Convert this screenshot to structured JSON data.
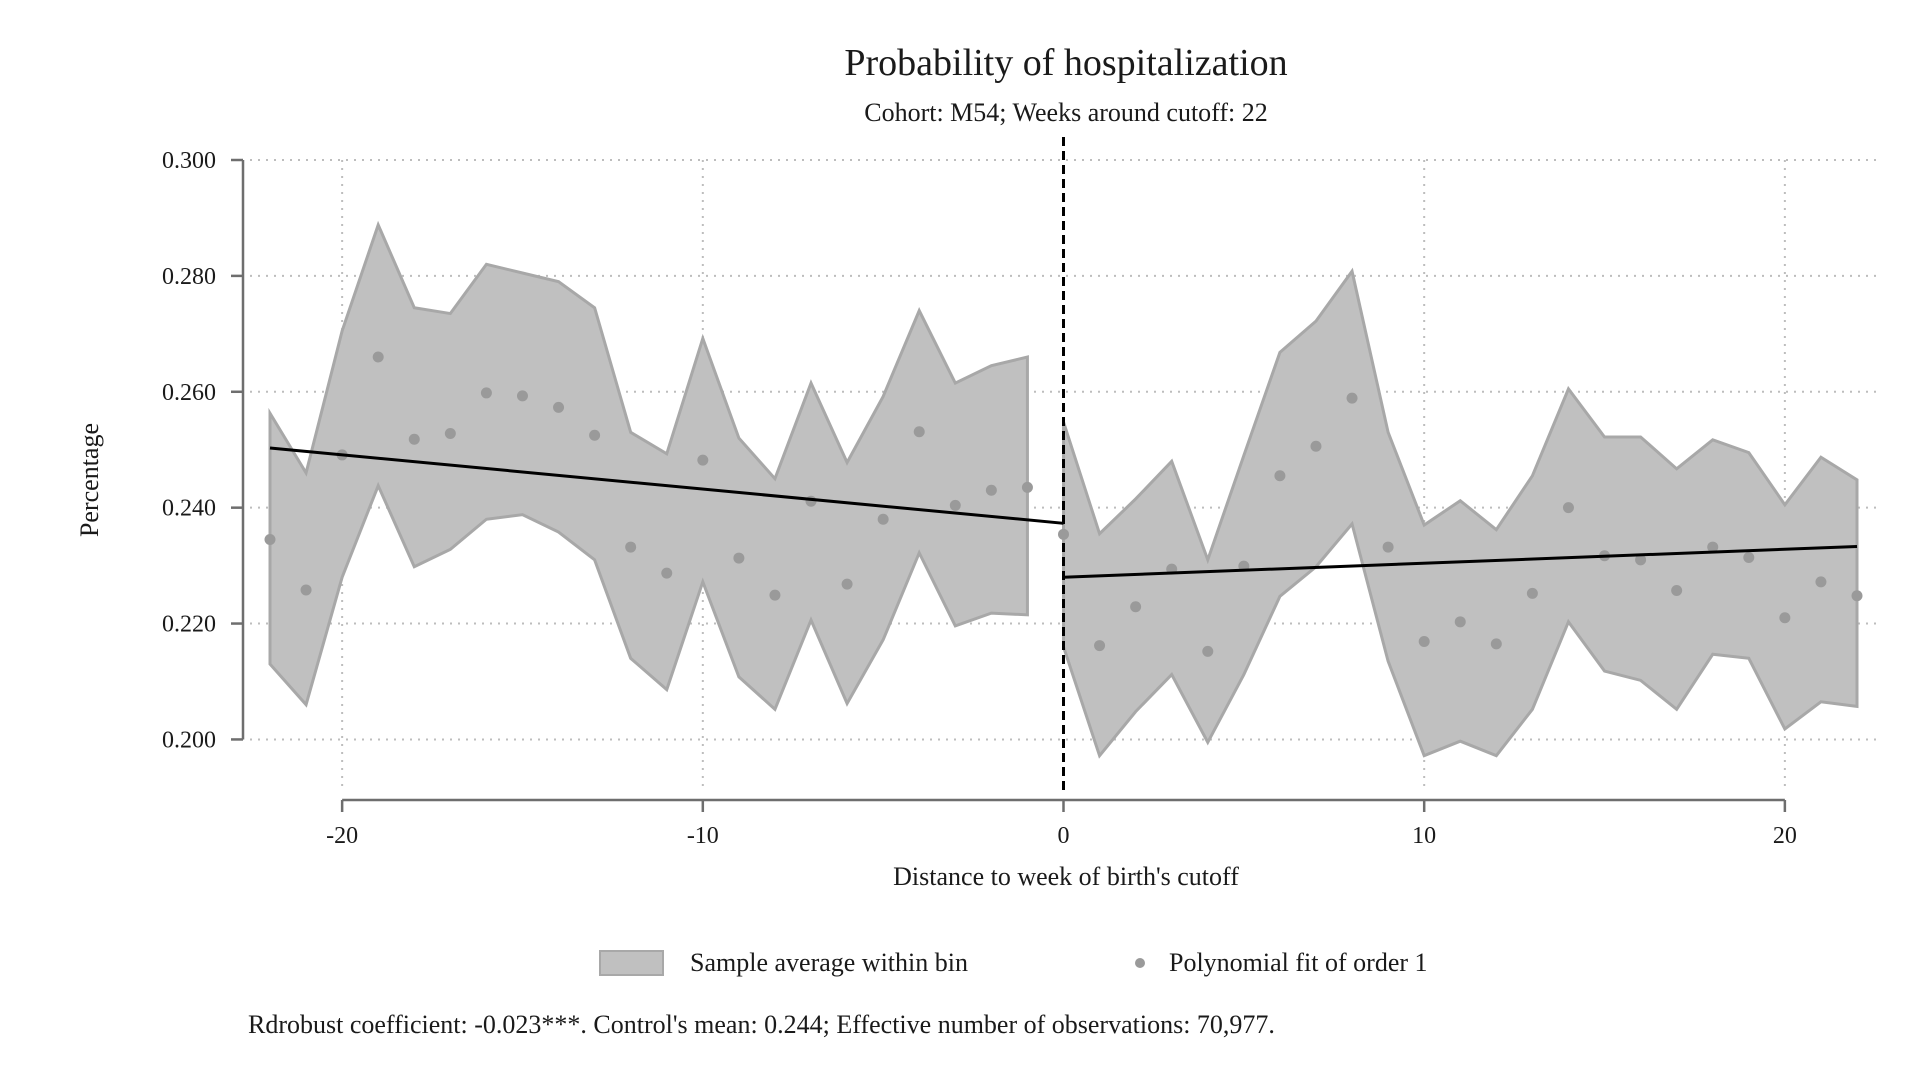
{
  "chart_data": {
    "type": "scatter",
    "title": "Probability of hospitalization",
    "subtitle": "Cohort: M54; Weeks around cutoff: 22",
    "xlabel": "Distance to week of birth's cutoff",
    "ylabel": "Percentage",
    "xlim": [
      -22,
      22
    ],
    "ylim": [
      0.193,
      0.3
    ],
    "x_ticks": [
      -20,
      -10,
      0,
      10,
      20
    ],
    "x_tick_labels": [
      "-20",
      "-10",
      "0",
      "10",
      "20"
    ],
    "y_ticks": [
      0.2,
      0.22,
      0.24,
      0.26,
      0.28,
      0.3
    ],
    "y_tick_labels": [
      "0.200",
      "0.220",
      "0.240",
      "0.260",
      "0.280",
      "0.300"
    ],
    "grid": true,
    "cutoff": 0,
    "legend_position": "bottom",
    "legend": [
      "Sample average within bin",
      "Polynomial fit of order 1"
    ],
    "series": [
      {
        "x": [
          -22,
          -21,
          -20,
          -19,
          -18,
          -17,
          -16,
          -15,
          -14,
          -13,
          -12,
          -11,
          -10,
          -9,
          -8,
          -7,
          -6,
          -5,
          -4,
          -3,
          -2,
          -1
        ],
        "values": [
          0.2345,
          0.2258,
          0.2491,
          0.266,
          0.2518,
          0.2528,
          0.2598,
          0.2593,
          0.2573,
          0.2525,
          0.2332,
          0.2287,
          0.2482,
          0.2313,
          0.2249,
          0.2411,
          0.2268,
          0.238,
          0.2531,
          0.2404,
          0.243,
          0.2435
        ],
        "lower": [
          0.213,
          0.206,
          0.228,
          0.2438,
          0.2298,
          0.2328,
          0.238,
          0.2388,
          0.2358,
          0.231,
          0.214,
          0.2086,
          0.2272,
          0.2108,
          0.2052,
          0.2206,
          0.2062,
          0.2172,
          0.2322,
          0.2196,
          0.2218,
          0.2215
        ],
        "upper": [
          0.2563,
          0.246,
          0.2705,
          0.2888,
          0.2745,
          0.2735,
          0.282,
          0.2805,
          0.279,
          0.2745,
          0.253,
          0.2493,
          0.2692,
          0.252,
          0.245,
          0.2615,
          0.2478,
          0.2592,
          0.274,
          0.2615,
          0.2645,
          0.266
        ]
      },
      {
        "x": [
          0,
          1,
          2,
          3,
          4,
          5,
          6,
          7,
          8,
          9,
          10,
          11,
          12,
          13,
          14,
          15,
          16,
          17,
          18,
          19,
          20,
          21,
          22
        ],
        "values": [
          0.2354,
          0.2162,
          0.2229,
          0.2294,
          0.2152,
          0.2299,
          0.2455,
          0.2506,
          0.2589,
          0.2332,
          0.2169,
          0.2203,
          0.2165,
          0.2252,
          0.24,
          0.2317,
          0.231,
          0.2257,
          0.2332,
          0.2314,
          0.221,
          0.2272,
          0.2248
        ],
        "lower": [
          0.216,
          0.1972,
          0.2048,
          0.2112,
          0.1995,
          0.2112,
          0.2247,
          0.2298,
          0.2372,
          0.2135,
          0.1972,
          0.1997,
          0.1972,
          0.2052,
          0.2203,
          0.2118,
          0.2102,
          0.2052,
          0.2147,
          0.214,
          0.2018,
          0.2065,
          0.2057
        ],
        "upper": [
          0.2548,
          0.2355,
          0.2415,
          0.248,
          0.231,
          0.249,
          0.2668,
          0.2722,
          0.2808,
          0.253,
          0.237,
          0.2412,
          0.2362,
          0.2455,
          0.2605,
          0.2522,
          0.2522,
          0.2467,
          0.2517,
          0.2495,
          0.2405,
          0.2487,
          0.2448
        ]
      }
    ],
    "fit_lines": [
      {
        "x": [
          -22,
          0
        ],
        "y": [
          0.2503,
          0.2373
        ]
      },
      {
        "x": [
          0,
          22
        ],
        "y": [
          0.228,
          0.2333
        ]
      }
    ],
    "colors": {
      "band": "#c0c0c0",
      "band_edge": "#a8a8a8",
      "point": "#9a9a9a",
      "fit": "#000000",
      "grid": "#bdbdbd",
      "axis": "#6e6e6e"
    },
    "note": "Rdrobust coefficient: -0.023***. Control's mean: 0.244; Effective number of observations: 70,977."
  }
}
